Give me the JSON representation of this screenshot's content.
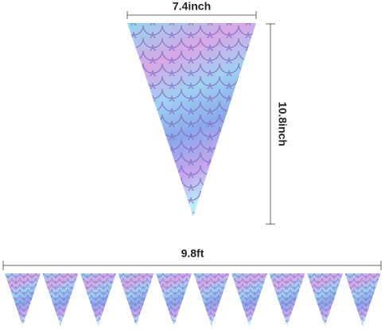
{
  "dimensions": {
    "width": "7.4inch",
    "height": "10.8inch",
    "length": "9.8ft"
  }
}
